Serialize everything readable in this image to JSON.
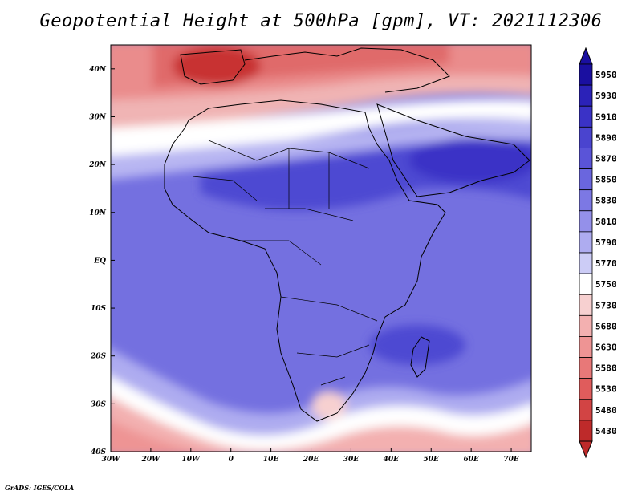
{
  "title": "Geopotential Height at 500hPa [gpm], VT: 2021112306",
  "credit": "GrADS: IGES/COLA",
  "map": {
    "lat_labels": [
      "40N",
      "30N",
      "20N",
      "10N",
      "EQ",
      "10S",
      "20S",
      "30S",
      "40S"
    ],
    "lat_values": [
      40,
      30,
      20,
      10,
      0,
      -10,
      -20,
      -30,
      -40
    ],
    "lon_labels": [
      "30W",
      "20W",
      "10W",
      "0",
      "10E",
      "20E",
      "30E",
      "40E",
      "50E",
      "60E",
      "70E"
    ],
    "lon_values": [
      -30,
      -20,
      -10,
      0,
      10,
      20,
      30,
      40,
      50,
      60,
      70
    ],
    "lon_range": [
      -30,
      75
    ],
    "lat_range": [
      -40,
      45
    ]
  },
  "colorbar": {
    "levels": [
      "5950",
      "5930",
      "5910",
      "5890",
      "5870",
      "5850",
      "5830",
      "5810",
      "5790",
      "5770",
      "5750",
      "5730",
      "5680",
      "5630",
      "5580",
      "5530",
      "5480",
      "5430"
    ],
    "colors": [
      "#1a0fa0",
      "#2b22b8",
      "#3a32c6",
      "#4a44cf",
      "#5a54d8",
      "#6a66de",
      "#7c78e4",
      "#9490ea",
      "#aeacf0",
      "#ccccf6",
      "#ffffff",
      "#f7d0d0",
      "#f3b0b0",
      "#ee9494",
      "#e87878",
      "#e05c5c",
      "#d24444",
      "#be2a2a"
    ],
    "top_color": "#1a0fa0",
    "bottom_color": "#be2a2a"
  }
}
